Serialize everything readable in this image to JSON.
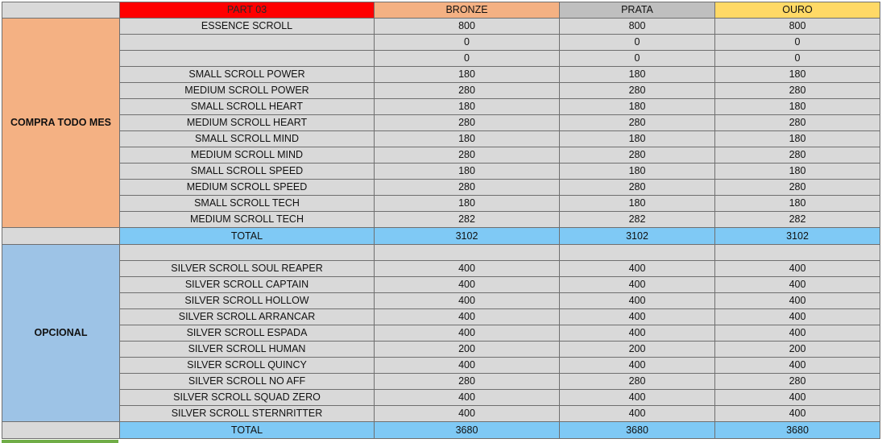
{
  "header": {
    "part": "PART 03",
    "bronze": "BRONZE",
    "prata": "PRATA",
    "ouro": "OURO"
  },
  "sections": [
    {
      "group": "COMPRA TODO MES",
      "rows": [
        {
          "item": "ESSENCE SCROLL",
          "bronze": "800",
          "prata": "800",
          "ouro": "800"
        },
        {
          "item": "",
          "bronze": "0",
          "prata": "0",
          "ouro": "0"
        },
        {
          "item": "",
          "bronze": "0",
          "prata": "0",
          "ouro": "0"
        },
        {
          "item": "SMALL SCROLL POWER",
          "bronze": "180",
          "prata": "180",
          "ouro": "180"
        },
        {
          "item": "MEDIUM SCROLL POWER",
          "bronze": "280",
          "prata": "280",
          "ouro": "280"
        },
        {
          "item": "SMALL SCROLL HEART",
          "bronze": "180",
          "prata": "180",
          "ouro": "180"
        },
        {
          "item": "MEDIUM SCROLL HEART",
          "bronze": "280",
          "prata": "280",
          "ouro": "280"
        },
        {
          "item": "SMALL SCROLL MIND",
          "bronze": "180",
          "prata": "180",
          "ouro": "180"
        },
        {
          "item": "MEDIUM SCROLL MIND",
          "bronze": "280",
          "prata": "280",
          "ouro": "280"
        },
        {
          "item": "SMALL SCROLL SPEED",
          "bronze": "180",
          "prata": "180",
          "ouro": "180"
        },
        {
          "item": "MEDIUM SCROLL SPEED",
          "bronze": "280",
          "prata": "280",
          "ouro": "280"
        },
        {
          "item": "SMALL SCROLL TECH",
          "bronze": "180",
          "prata": "180",
          "ouro": "180"
        },
        {
          "item": "MEDIUM SCROLL TECH",
          "bronze": "282",
          "prata": "282",
          "ouro": "282"
        }
      ],
      "total": {
        "label": "TOTAL",
        "bronze": "3102",
        "prata": "3102",
        "ouro": "3102"
      }
    },
    {
      "group": "OPCIONAL",
      "rows": [
        {
          "item": "",
          "bronze": "",
          "prata": "",
          "ouro": ""
        },
        {
          "item": "SILVER SCROLL SOUL REAPER",
          "bronze": "400",
          "prata": "400",
          "ouro": "400"
        },
        {
          "item": "SILVER SCROLL CAPTAIN",
          "bronze": "400",
          "prata": "400",
          "ouro": "400"
        },
        {
          "item": "SILVER SCROLL HOLLOW",
          "bronze": "400",
          "prata": "400",
          "ouro": "400"
        },
        {
          "item": "SILVER SCROLL ARRANCAR",
          "bronze": "400",
          "prata": "400",
          "ouro": "400"
        },
        {
          "item": "SILVER SCROLL ESPADA",
          "bronze": "400",
          "prata": "400",
          "ouro": "400"
        },
        {
          "item": "SILVER SCROLL HUMAN",
          "bronze": "200",
          "prata": "200",
          "ouro": "200"
        },
        {
          "item": "SILVER SCROLL QUINCY",
          "bronze": "400",
          "prata": "400",
          "ouro": "400"
        },
        {
          "item": "SILVER SCROLL NO AFF",
          "bronze": "280",
          "prata": "280",
          "ouro": "280"
        },
        {
          "item": "SILVER SCROLL SQUAD ZERO",
          "bronze": "400",
          "prata": "400",
          "ouro": "400"
        },
        {
          "item": "SILVER SCROLL STERNRITTER",
          "bronze": "400",
          "prata": "400",
          "ouro": "400"
        }
      ],
      "total": {
        "label": "TOTAL",
        "bronze": "3680",
        "prata": "3680",
        "ouro": "3680"
      }
    }
  ],
  "colors": {
    "part_header": "#ff0000",
    "bronze_header": "#f4b183",
    "prata_header": "#bfbfbf",
    "ouro_header": "#ffd966",
    "compra_group": "#f4b183",
    "opcional_group": "#9dc3e6",
    "total_row": "#7fc9f5",
    "cell_bg": "#d9d9d9"
  }
}
